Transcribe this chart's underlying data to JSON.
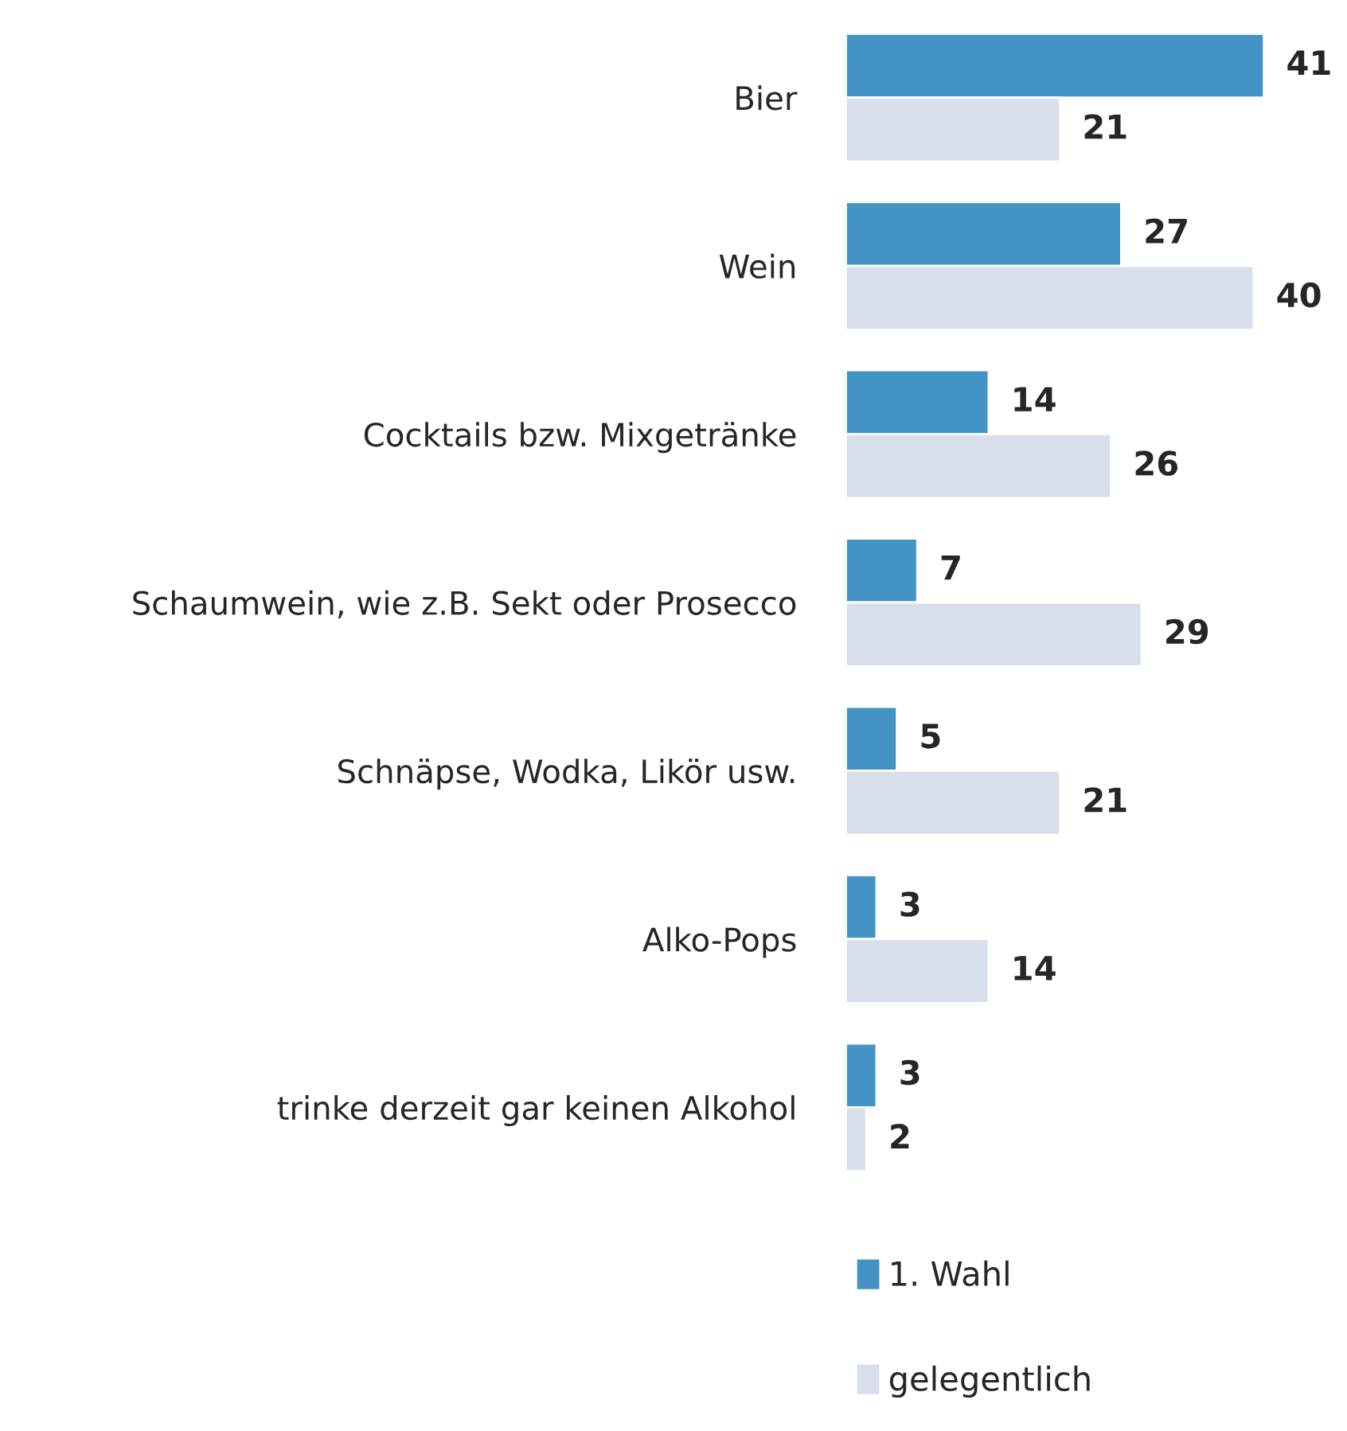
{
  "chart_data": {
    "type": "bar",
    "orientation": "horizontal",
    "categories": [
      "Bier",
      "Wein",
      "Cocktails bzw. Mixgetränke",
      "Schaumwein, wie z.B. Sekt oder Prosecco",
      "Schnäpse, Wodka, Likör usw.",
      "Alko-Pops",
      "trinke derzeit gar keinen Alkohol"
    ],
    "series": [
      {
        "name": "1. Wahl",
        "color": "#4394c4",
        "values": [
          41,
          27,
          14,
          7,
          5,
          3,
          3
        ]
      },
      {
        "name": "gelegentlich",
        "color": "#d7dfea",
        "values": [
          21,
          40,
          26,
          29,
          21,
          14,
          2
        ]
      }
    ],
    "data_labels": true,
    "legend": "bottom",
    "tick_labels": "y",
    "grid": false
  }
}
